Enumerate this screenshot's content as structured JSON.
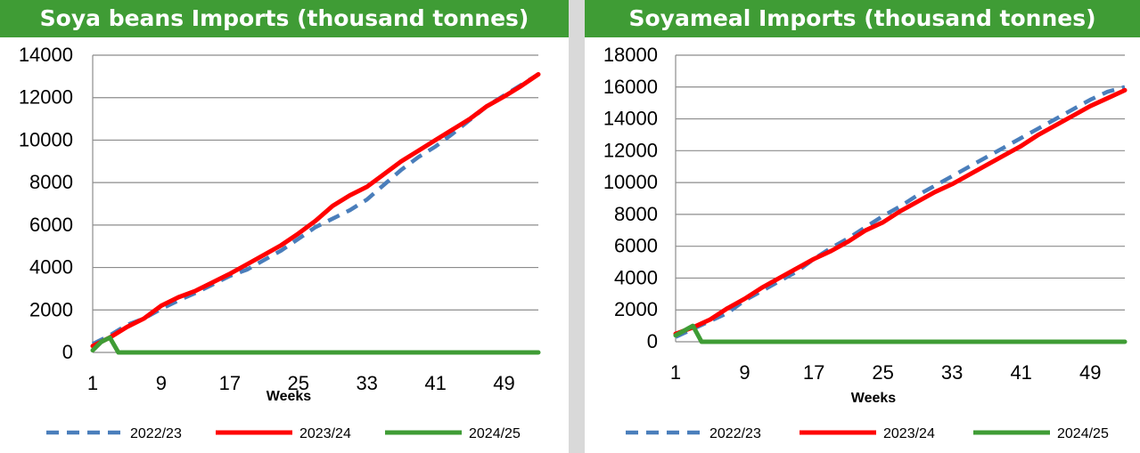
{
  "chart_data": [
    {
      "type": "line",
      "title": "Soya beans Imports (thousand tonnes)",
      "xlabel": "Weeks",
      "ylabel": "",
      "xlim": [
        1,
        53
      ],
      "ylim": [
        0,
        14000
      ],
      "x_ticks": [
        "1",
        "9",
        "17",
        "25",
        "33",
        "41",
        "49"
      ],
      "y_ticks": [
        "0",
        "2000",
        "4000",
        "6000",
        "8000",
        "10000",
        "12000",
        "14000"
      ],
      "grid": true,
      "legend_position": "bottom",
      "series": [
        {
          "name": "2022/23",
          "color": "#4a7ebb",
          "style": "dashed",
          "x": [
            1,
            3,
            5,
            7,
            9,
            11,
            13,
            15,
            17,
            19,
            21,
            23,
            25,
            27,
            29,
            31,
            33,
            35,
            37,
            39,
            41,
            43,
            45,
            47,
            49,
            51,
            53
          ],
          "values": [
            400,
            800,
            1300,
            1600,
            2050,
            2450,
            2800,
            3200,
            3600,
            3900,
            4350,
            4800,
            5350,
            5900,
            6300,
            6700,
            7200,
            7900,
            8600,
            9200,
            9700,
            10300,
            10950,
            11600,
            12100,
            12600,
            13100
          ]
        },
        {
          "name": "2023/24",
          "color": "#ff0000",
          "style": "solid",
          "x": [
            1,
            3,
            5,
            7,
            9,
            11,
            13,
            15,
            17,
            19,
            21,
            23,
            25,
            27,
            29,
            31,
            33,
            35,
            37,
            39,
            41,
            43,
            45,
            47,
            49,
            51,
            53
          ],
          "values": [
            300,
            700,
            1200,
            1600,
            2200,
            2600,
            2900,
            3300,
            3700,
            4150,
            4600,
            5050,
            5600,
            6200,
            6900,
            7400,
            7800,
            8400,
            9000,
            9500,
            10000,
            10500,
            11000,
            11600,
            12050,
            12550,
            13100
          ]
        },
        {
          "name": "2024/25",
          "color": "#3f9c35",
          "style": "solid",
          "x": [
            1,
            2,
            3,
            4,
            5,
            53
          ],
          "values": [
            100,
            500,
            700,
            0,
            0,
            0
          ]
        }
      ]
    },
    {
      "type": "line",
      "title": "Soyameal Imports (thousand tonnes)",
      "xlabel": "Weeks",
      "ylabel": "",
      "xlim": [
        1,
        53
      ],
      "ylim": [
        0,
        18000
      ],
      "x_ticks": [
        "1",
        "9",
        "17",
        "25",
        "33",
        "41",
        "49"
      ],
      "y_ticks": [
        "0",
        "2000",
        "4000",
        "6000",
        "8000",
        "10000",
        "12000",
        "14000",
        "16000",
        "18000"
      ],
      "grid": true,
      "legend_position": "bottom",
      "series": [
        {
          "name": "2022/23",
          "color": "#4a7ebb",
          "style": "dashed",
          "x": [
            1,
            3,
            5,
            7,
            9,
            11,
            13,
            15,
            17,
            19,
            21,
            23,
            25,
            27,
            29,
            31,
            33,
            35,
            37,
            39,
            41,
            43,
            45,
            47,
            49,
            51,
            53
          ],
          "values": [
            300,
            800,
            1300,
            1800,
            2600,
            3200,
            3800,
            4400,
            5200,
            5900,
            6500,
            7200,
            7900,
            8500,
            9200,
            9800,
            10400,
            11000,
            11600,
            12200,
            12800,
            13400,
            14000,
            14600,
            15200,
            15700,
            16000
          ]
        },
        {
          "name": "2023/24",
          "color": "#ff0000",
          "style": "solid",
          "x": [
            1,
            3,
            5,
            7,
            9,
            11,
            13,
            15,
            17,
            19,
            21,
            23,
            25,
            27,
            29,
            31,
            33,
            35,
            37,
            39,
            41,
            43,
            45,
            47,
            49,
            51,
            53
          ],
          "values": [
            500,
            900,
            1400,
            2100,
            2700,
            3400,
            4000,
            4600,
            5200,
            5700,
            6300,
            7000,
            7500,
            8200,
            8800,
            9400,
            9900,
            10500,
            11100,
            11700,
            12300,
            13000,
            13600,
            14200,
            14800,
            15300,
            15800
          ]
        },
        {
          "name": "2024/25",
          "color": "#3f9c35",
          "style": "solid",
          "x": [
            1,
            2,
            3,
            4,
            5,
            53
          ],
          "values": [
            400,
            700,
            1000,
            0,
            0,
            0
          ]
        }
      ]
    }
  ]
}
